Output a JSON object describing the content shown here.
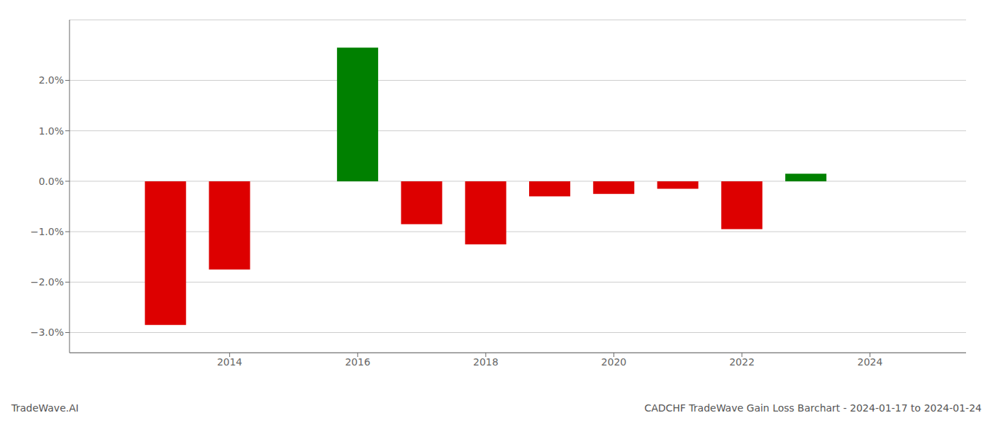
{
  "chart_data": {
    "type": "bar",
    "title": "CADCHF TradeWave Gain Loss Barchart - 2024-01-17 to 2024-01-24",
    "annotations": [
      "TradeWave.AI"
    ],
    "x": [
      2013,
      2014,
      2016,
      2017,
      2018,
      2019,
      2020,
      2021,
      2022,
      2023
    ],
    "values": [
      -0.0285,
      -0.0175,
      0.0265,
      -0.0085,
      -0.0125,
      -0.003,
      -0.0025,
      -0.0015,
      -0.0095,
      0.0015
    ],
    "colors": [
      "#dd0000",
      "#dd0000",
      "#008000",
      "#dd0000",
      "#dd0000",
      "#dd0000",
      "#dd0000",
      "#dd0000",
      "#dd0000",
      "#008000"
    ],
    "xlim": [
      2011.5,
      2025.5
    ],
    "xticks": [
      2014,
      2016,
      2018,
      2020,
      2022,
      2024
    ],
    "ylim": [
      -0.034,
      0.032
    ],
    "yticks": [
      {
        "value": -0.03,
        "label": "−3.0%"
      },
      {
        "value": -0.02,
        "label": "−2.0%"
      },
      {
        "value": -0.01,
        "label": "−1.0%"
      },
      {
        "value": 0.0,
        "label": "0.0%"
      },
      {
        "value": 0.01,
        "label": "1.0%"
      },
      {
        "value": 0.02,
        "label": "2.0%"
      }
    ],
    "grid": true
  }
}
